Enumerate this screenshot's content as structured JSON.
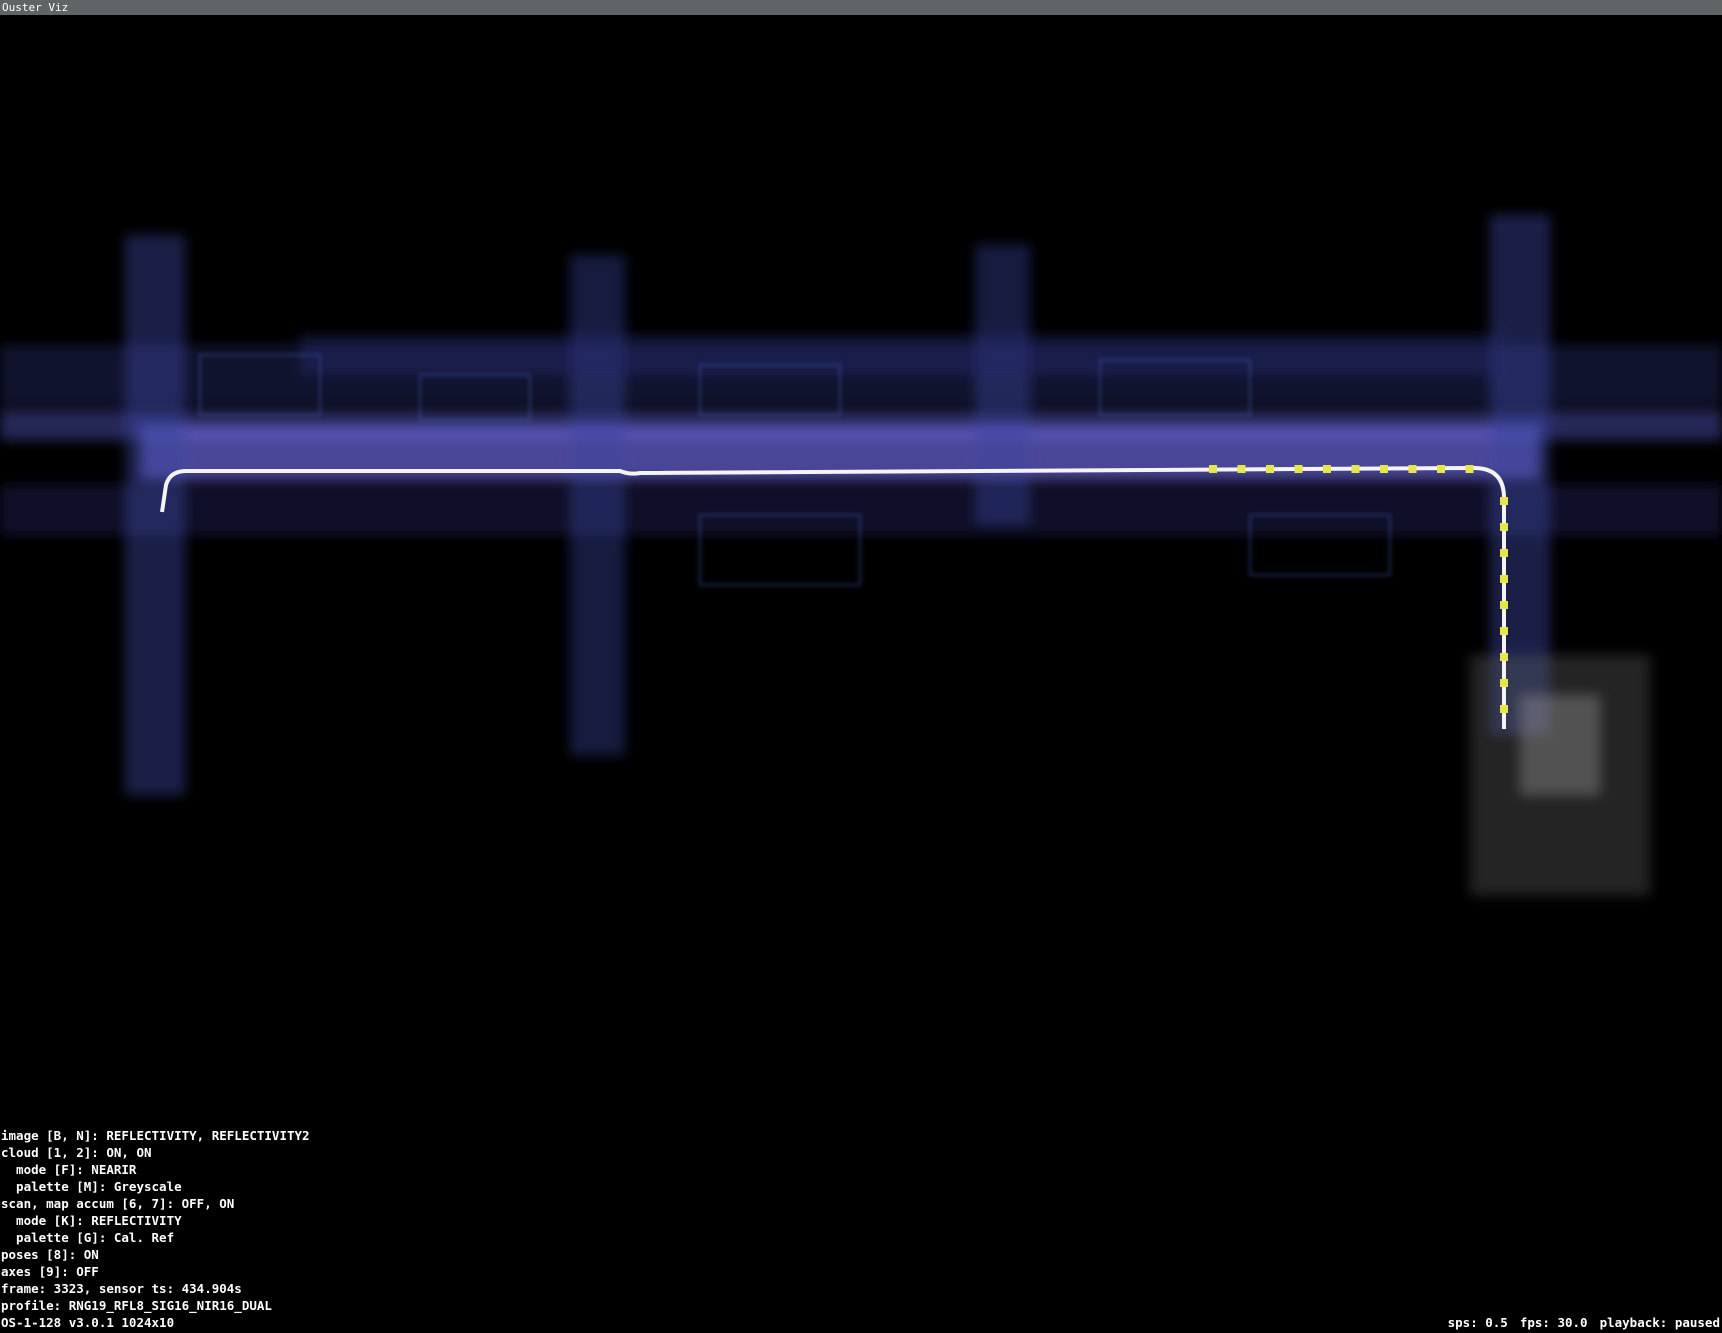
{
  "window": {
    "title": "Ouster Viz"
  },
  "overlay": {
    "lines": [
      "image [B, N]: REFLECTIVITY, REFLECTIVITY2",
      "cloud [1, 2]: ON, ON",
      "  mode [F]: NEARIR",
      "  palette [M]: Greyscale",
      "scan, map accum [6, 7]: OFF, ON",
      "  mode [K]: REFLECTIVITY",
      "  palette [G]: Cal. Ref",
      "poses [8]: ON",
      "axes [9]: OFF",
      "frame: 3323, sensor ts: 434.904s",
      "profile: RNG19_RFL8_SIG16_NIR16_DUAL",
      "OS-1-128 v3.0.1 1024x10"
    ]
  },
  "status": {
    "items": [
      "sps: 0.5",
      "fps: 30.0",
      "playback: paused"
    ]
  }
}
